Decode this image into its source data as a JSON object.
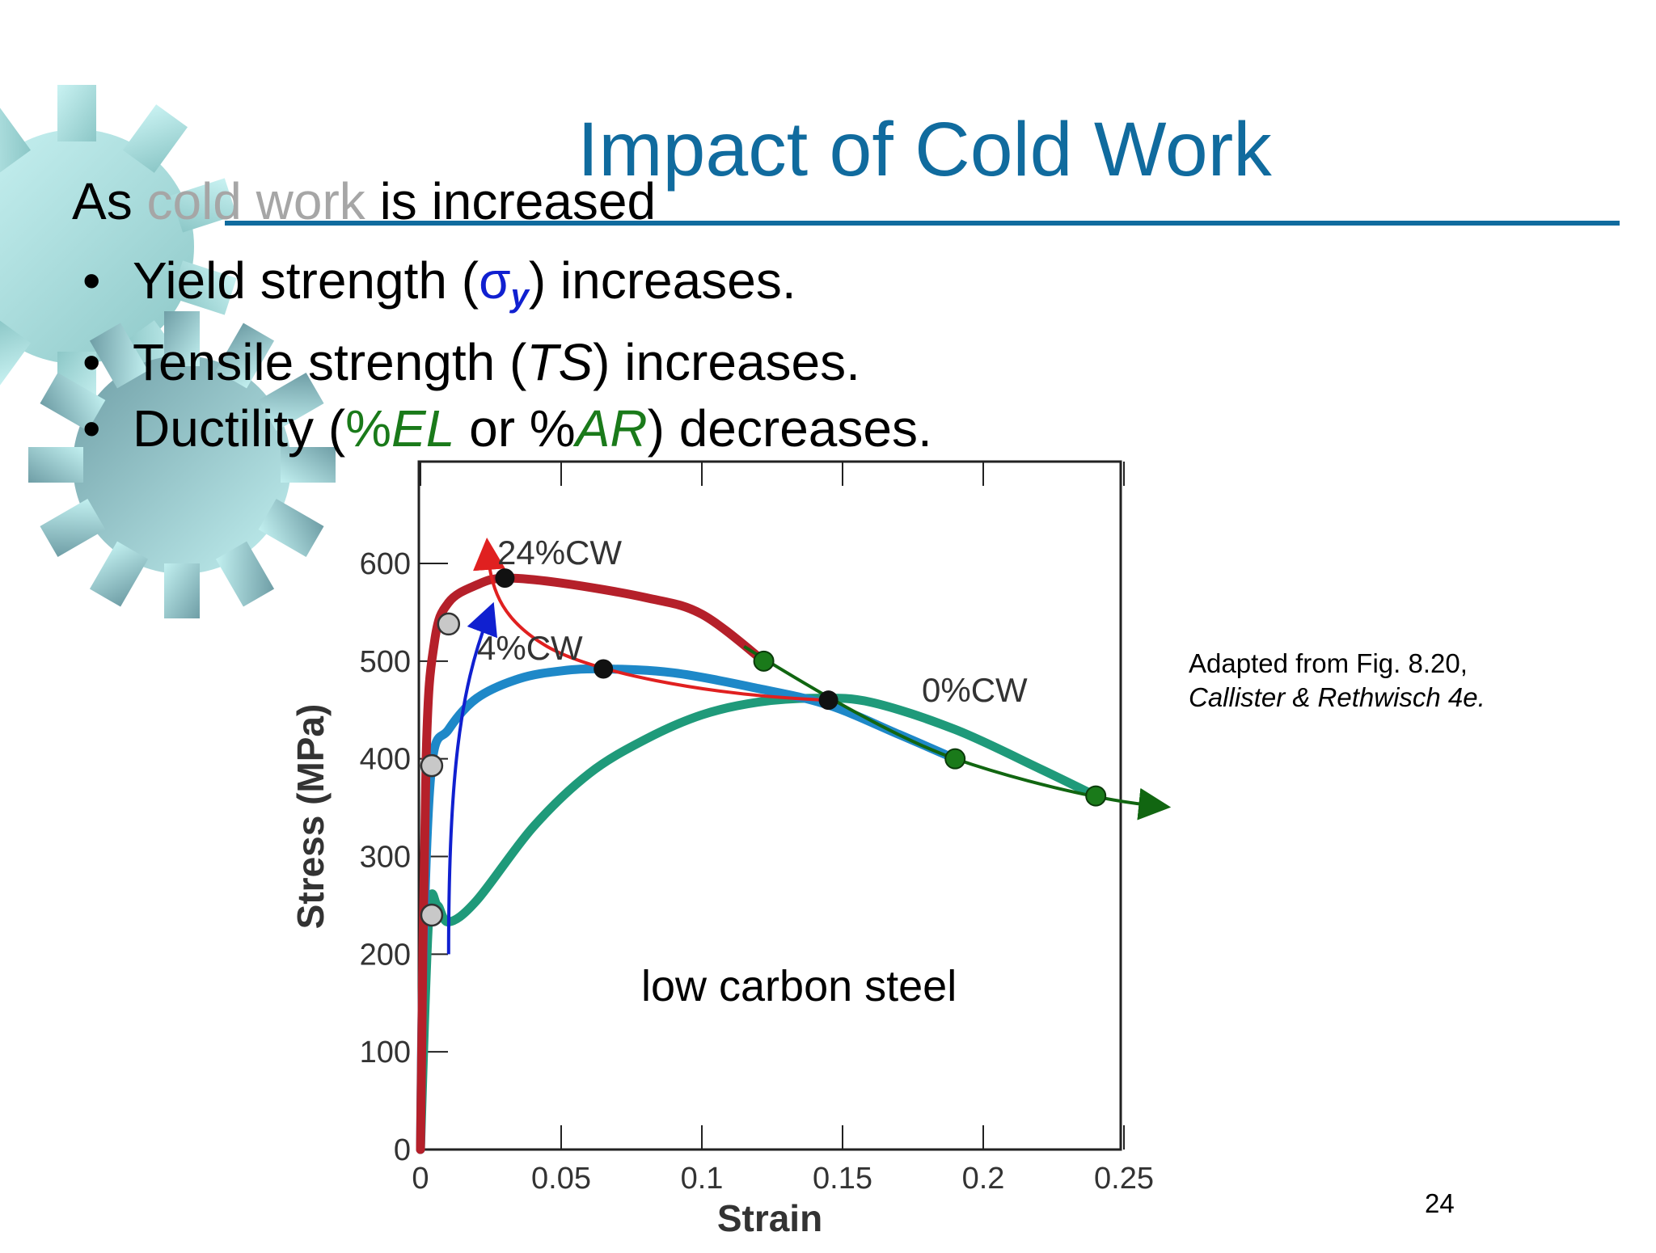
{
  "slide": {
    "title": "Impact of Cold Work",
    "lead": {
      "prefix": "As",
      "highlight": "cold work",
      "suffix": "is increased"
    },
    "bullets": [
      {
        "before": "Yield strength (",
        "symbol": "σ",
        "subscript": "y",
        "after": ") increases."
      },
      {
        "before": "Tensile strength (",
        "term": "TS",
        "after": ") increases."
      },
      {
        "before": "Ductility (",
        "pct1": "%",
        "term1": "EL",
        "mid": " or %",
        "term2": "AR",
        "after": ") decreases."
      }
    ],
    "bullet_glyph": "•",
    "caption": {
      "line1": "Adapted from Fig. 8.20,",
      "line2": "Callister & Rethwisch 4e."
    },
    "page_number": "24"
  },
  "colors": {
    "title": "#106b9e",
    "muted": "#a6a6a6",
    "accent_blue": "#1020d0",
    "accent_green": "#1a7a1a",
    "cw24": "#b5202a",
    "cw4": "#1e88c8",
    "cw0": "#1f9a7a"
  },
  "chart_data": {
    "type": "line",
    "xlabel": "Strain",
    "ylabel": "Stress (MPa)",
    "xlim": [
      0,
      0.25
    ],
    "ylim": [
      0,
      700
    ],
    "x_ticks": [
      "0",
      "0.05",
      "0.1",
      "0.15",
      "0.2",
      "0.25"
    ],
    "y_ticks": [
      "0",
      "100",
      "200",
      "300",
      "400",
      "500",
      "600"
    ],
    "annotation": "low carbon steel",
    "series": [
      {
        "name": "24%CW",
        "points": [
          [
            0,
            0
          ],
          [
            0.002,
            400
          ],
          [
            0.005,
            520
          ],
          [
            0.01,
            560
          ],
          [
            0.02,
            578
          ],
          [
            0.03,
            585
          ],
          [
            0.05,
            580
          ],
          [
            0.08,
            565
          ],
          [
            0.1,
            548
          ],
          [
            0.122,
            500
          ]
        ]
      },
      {
        "name": "4%CW",
        "points": [
          [
            0,
            0
          ],
          [
            0.001,
            200
          ],
          [
            0.004,
            393
          ],
          [
            0.01,
            430
          ],
          [
            0.02,
            462
          ],
          [
            0.035,
            482
          ],
          [
            0.05,
            490
          ],
          [
            0.065,
            492
          ],
          [
            0.09,
            488
          ],
          [
            0.12,
            472
          ],
          [
            0.145,
            455
          ],
          [
            0.17,
            425
          ],
          [
            0.19,
            400
          ]
        ]
      },
      {
        "name": "0%CW",
        "points": [
          [
            0,
            0
          ],
          [
            0.003,
            240
          ],
          [
            0.006,
            250
          ],
          [
            0.01,
            233
          ],
          [
            0.02,
            255
          ],
          [
            0.04,
            330
          ],
          [
            0.06,
            385
          ],
          [
            0.08,
            420
          ],
          [
            0.1,
            445
          ],
          [
            0.12,
            458
          ],
          [
            0.14,
            462
          ],
          [
            0.16,
            458
          ],
          [
            0.19,
            430
          ],
          [
            0.22,
            390
          ],
          [
            0.24,
            362
          ]
        ]
      }
    ],
    "yield_points": [
      [
        0.01,
        538
      ],
      [
        0.004,
        393
      ],
      [
        0.004,
        240
      ]
    ],
    "tensile_points": [
      [
        0.03,
        585
      ],
      [
        0.065,
        492
      ],
      [
        0.145,
        460
      ]
    ],
    "fracture_points": [
      [
        0.122,
        500
      ],
      [
        0.19,
        400
      ],
      [
        0.24,
        362
      ]
    ]
  }
}
